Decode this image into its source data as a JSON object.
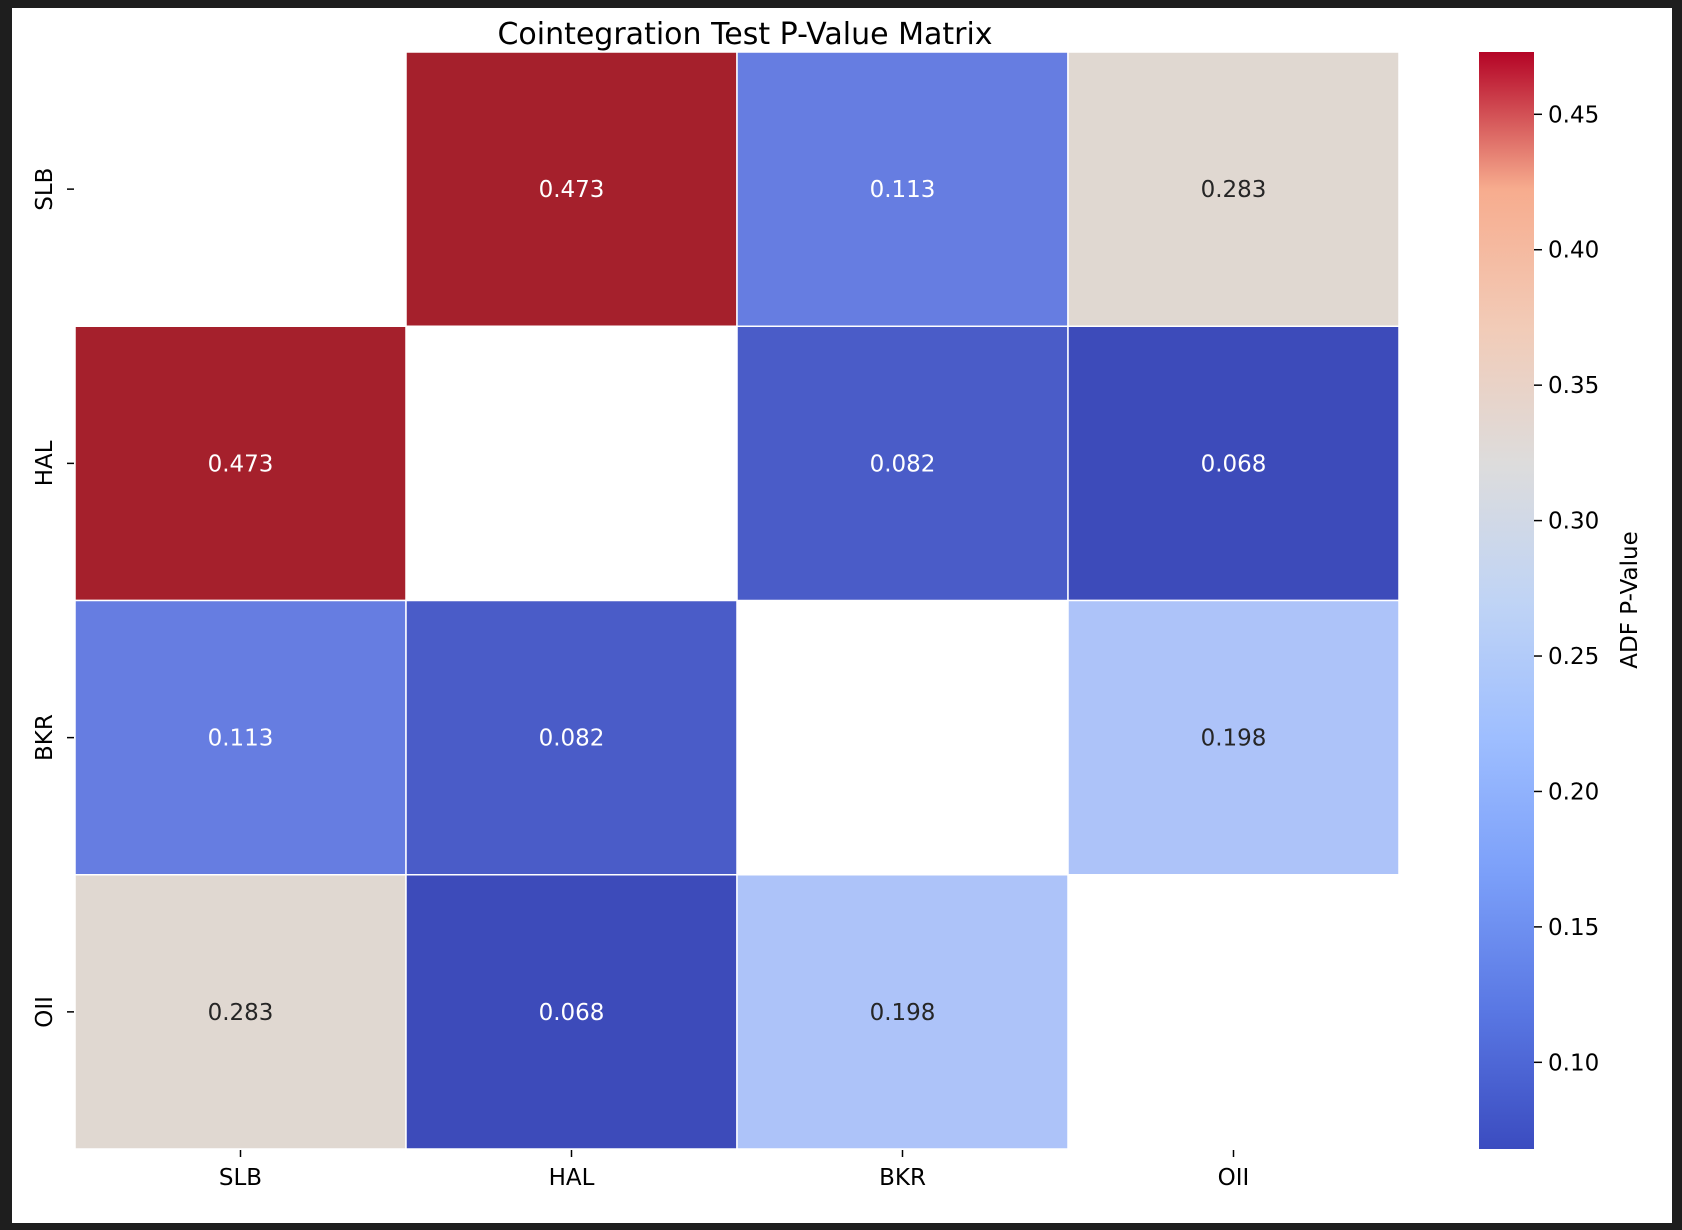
{
  "chart_data": {
    "type": "heatmap",
    "title": "Cointegration Test P-Value Matrix",
    "row_labels": [
      "SLB",
      "HAL",
      "BKR",
      "OII"
    ],
    "col_labels": [
      "SLB",
      "HAL",
      "BKR",
      "OII"
    ],
    "values": [
      [
        null,
        0.473,
        0.113,
        0.283
      ],
      [
        0.473,
        null,
        0.082,
        0.068
      ],
      [
        0.113,
        0.082,
        null,
        0.198
      ],
      [
        0.283,
        0.068,
        0.198,
        null
      ]
    ],
    "cell_colors": [
      [
        null,
        "#a5202c",
        "#667de1",
        "#e0d8d1"
      ],
      [
        null,
        null,
        "#4a5cc8",
        "#3d4bba"
      ],
      [
        null,
        null,
        null,
        "#adc3f9"
      ],
      [
        null,
        null,
        null,
        null
      ]
    ],
    "colorbar": {
      "label": "ADF P-Value",
      "colormap": "coolwarm",
      "vmin": 0.068,
      "vmax": 0.473,
      "ticks": [
        0.1,
        0.15,
        0.2,
        0.25,
        0.3,
        0.35,
        0.4,
        0.45
      ],
      "tick_labels": [
        "0.10",
        "0.15",
        "0.20",
        "0.25",
        "0.30",
        "0.35",
        "0.40",
        "0.45"
      ]
    },
    "annotation_color_dark_bg": "#ffffff",
    "annotation_color_light_bg": "#262626"
  }
}
